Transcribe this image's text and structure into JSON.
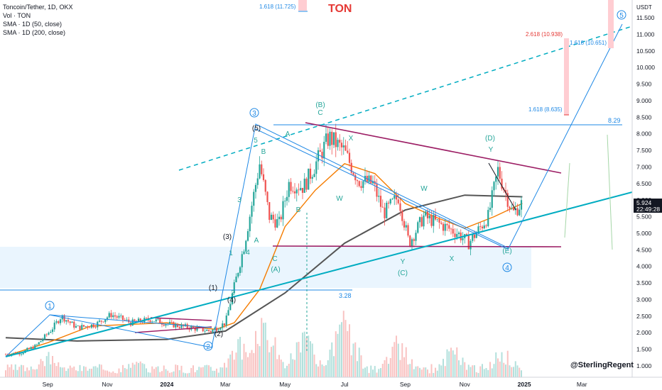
{
  "header": {
    "symbol_line": "Toncoin/Tether, 1D, OKX",
    "vol_line": "Vol · TON",
    "sma50_line": "SMA · 1D (50, close)",
    "sma200_line": "SMA · 1D (200, close)",
    "title": "TON",
    "watermark": "@SterlingRegent",
    "currency": "USDT"
  },
  "colors": {
    "up": "#26a69a",
    "down": "#ef5350",
    "sma50": "#f57c00",
    "sma200": "#555555",
    "blue": "#1e88e5",
    "teal": "#00acc1",
    "purple": "#9c1d64",
    "fib": "#ef9a9a"
  },
  "price_scale": {
    "ticks": [
      "11.500",
      "11.000",
      "10.500",
      "10.000",
      "9.500",
      "9.000",
      "8.500",
      "8.000",
      "7.500",
      "7.000",
      "6.500",
      "6.000",
      "5.500",
      "5.000",
      "4.500",
      "4.000",
      "3.500",
      "3.000",
      "2.500",
      "2.000",
      "1.500",
      "1.000"
    ],
    "current_price": "5.924",
    "countdown": "22:49:28"
  },
  "time_axis": [
    "Sep",
    "Nov",
    "2024",
    "Mar",
    "May",
    "Jul",
    "Sep",
    "Nov",
    "2025",
    "Mar"
  ],
  "fib_labels": {
    "top_left": "1.618 (11.725)",
    "f2618": "2.618 (10.938)",
    "f1618_hi": "1.618 (10.651)",
    "f1618_mid": "1.618 (8.635)",
    "level_829": "8.29",
    "level_328": "3.28"
  },
  "wave_labels": {
    "c1": "1",
    "c2": "2",
    "c3": "3",
    "c4": "4",
    "c5": "5",
    "p1": "(1)",
    "p2": "(2)",
    "p3": "(3)",
    "p4": "(4)",
    "p5": "(5)",
    "pA": "(A)",
    "pB": "(B)",
    "pC": "(C)",
    "pD": "(D)",
    "pE": "(E)",
    "A1": "A",
    "B1": "B",
    "C1": "C",
    "A2": "A",
    "B2": "B",
    "C2": "C",
    "W1": "W",
    "X1": "X",
    "Y1": "Y",
    "W2": "W",
    "X2": "X",
    "Y2": "Y",
    "n1": "1",
    "n2": "2",
    "n3": "3",
    "n4": "4",
    "n5": "5"
  },
  "chart_data": {
    "type": "candlestick",
    "symbol": "Toncoin/Tether",
    "interval": "1D",
    "exchange": "OKX",
    "ylim": [
      0.7,
      12.0
    ],
    "x_start": "2023-07-20",
    "x_end": "2025-04-20",
    "series_close": [
      [
        "2023-07-20",
        1.35
      ],
      [
        "2023-08-05",
        1.4
      ],
      [
        "2023-08-20",
        1.6
      ],
      [
        "2023-09-05",
        2.1
      ],
      [
        "2023-09-15",
        2.5
      ],
      [
        "2023-10-01",
        2.15
      ],
      [
        "2023-10-20",
        2.25
      ],
      [
        "2023-11-05",
        2.55
      ],
      [
        "2023-11-25",
        2.3
      ],
      [
        "2023-12-15",
        2.4
      ],
      [
        "2024-01-05",
        2.25
      ],
      [
        "2024-01-25",
        2.15
      ],
      [
        "2024-02-15",
        2.05
      ],
      [
        "2024-03-01",
        2.3
      ],
      [
        "2024-03-10",
        3.4
      ],
      [
        "2024-03-20",
        4.6
      ],
      [
        "2024-04-05",
        7.1
      ],
      [
        "2024-04-15",
        5.5
      ],
      [
        "2024-04-25",
        5.3
      ],
      [
        "2024-05-05",
        6.5
      ],
      [
        "2024-05-20",
        6.4
      ],
      [
        "2024-06-05",
        7.3
      ],
      [
        "2024-06-15",
        7.9
      ],
      [
        "2024-06-30",
        7.5
      ],
      [
        "2024-07-15",
        6.6
      ],
      [
        "2024-07-30",
        6.5
      ],
      [
        "2024-08-10",
        5.6
      ],
      [
        "2024-08-25",
        6.1
      ],
      [
        "2024-09-05",
        4.7
      ],
      [
        "2024-09-20",
        5.5
      ],
      [
        "2024-10-05",
        5.3
      ],
      [
        "2024-10-25",
        5.0
      ],
      [
        "2024-11-05",
        4.7
      ],
      [
        "2024-11-25",
        5.5
      ],
      [
        "2024-12-05",
        6.9
      ],
      [
        "2024-12-20",
        5.6
      ],
      [
        "2024-12-30",
        5.92
      ]
    ],
    "sma50": [
      [
        "2023-07-20",
        1.3
      ],
      [
        "2023-09-01",
        1.7
      ],
      [
        "2023-10-15",
        2.2
      ],
      [
        "2024-01-01",
        2.3
      ],
      [
        "2024-02-20",
        2.1
      ],
      [
        "2024-03-10",
        2.3
      ],
      [
        "2024-04-05",
        3.3
      ],
      [
        "2024-05-01",
        5.2
      ],
      [
        "2024-06-01",
        6.3
      ],
      [
        "2024-07-01",
        7.1
      ],
      [
        "2024-08-01",
        6.8
      ],
      [
        "2024-09-01",
        5.9
      ],
      [
        "2024-10-01",
        5.5
      ],
      [
        "2024-11-01",
        5.15
      ],
      [
        "2024-12-01",
        5.5
      ],
      [
        "2024-12-30",
        5.9
      ]
    ],
    "sma200": [
      [
        "2023-07-20",
        1.85
      ],
      [
        "2023-10-01",
        1.75
      ],
      [
        "2024-01-01",
        1.8
      ],
      [
        "2024-03-01",
        2.05
      ],
      [
        "2024-05-01",
        3.2
      ],
      [
        "2024-07-01",
        4.7
      ],
      [
        "2024-09-01",
        5.7
      ],
      [
        "2024-11-01",
        6.15
      ],
      [
        "2024-12-30",
        6.1
      ]
    ],
    "volume_spikes": [
      [
        "2023-09-01",
        0.35
      ],
      [
        "2023-12-01",
        0.25
      ],
      [
        "2024-03-15",
        0.55
      ],
      [
        "2024-04-10",
        0.95
      ],
      [
        "2024-05-20",
        0.7
      ],
      [
        "2024-07-01",
        0.95
      ],
      [
        "2024-08-25",
        0.6
      ],
      [
        "2024-10-20",
        0.5
      ],
      [
        "2024-12-10",
        0.45
      ]
    ],
    "levels": {
      "horizontal_829": 8.29,
      "horizontal_328": 3.28,
      "support": 4.62,
      "fib_11725": 11.725,
      "fib_10938": 10.938,
      "fib_10651": 10.651,
      "fib_8635": 8.635
    }
  }
}
